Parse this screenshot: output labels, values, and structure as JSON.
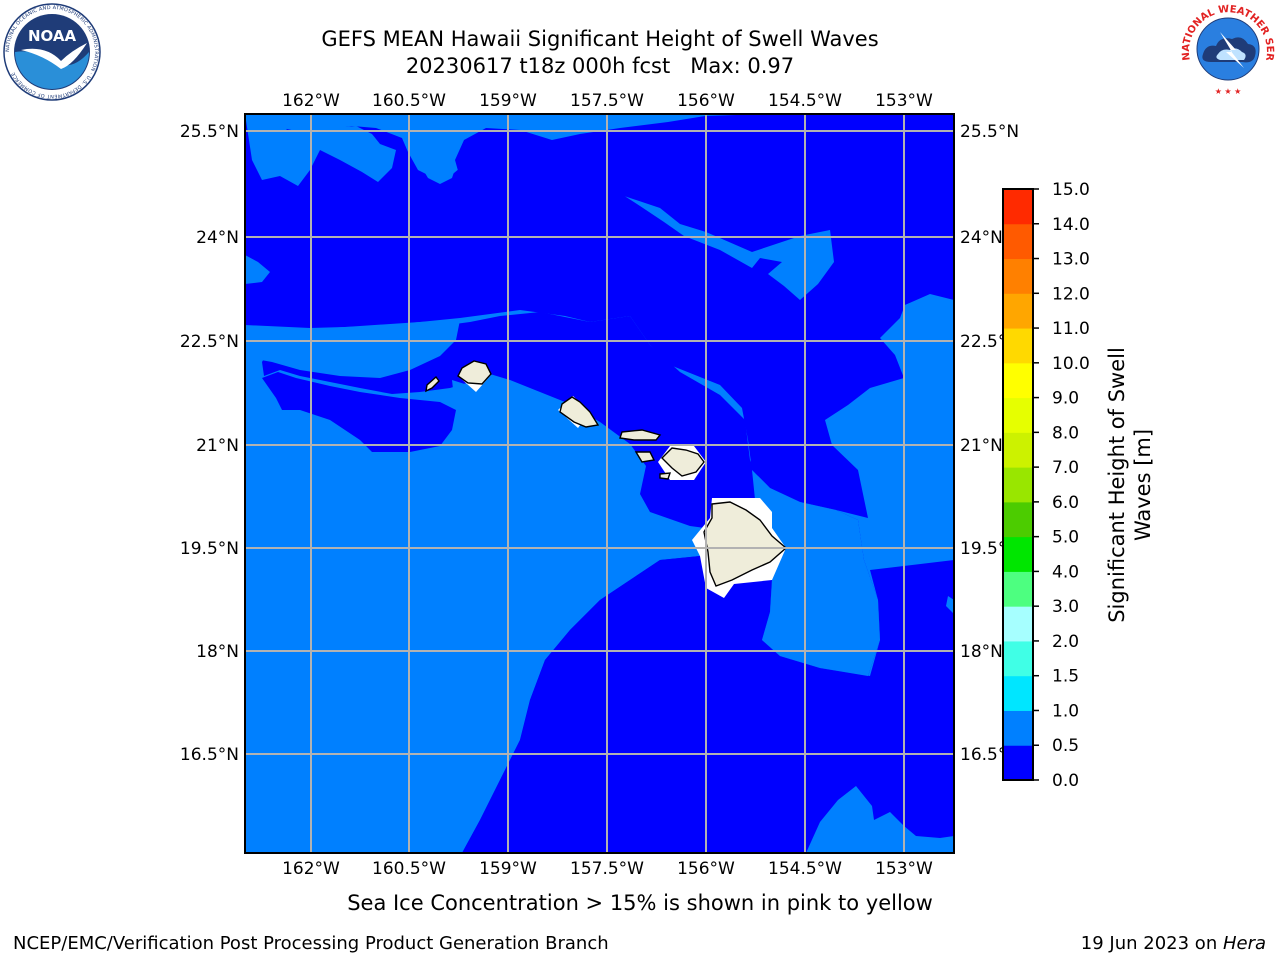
{
  "title": {
    "line1": "GEFS MEAN Hawaii Significant Height of Swell Waves",
    "line2": "20230617 t18z 000h fcst   Max: 0.97"
  },
  "map": {
    "lon_labels": [
      "162°W",
      "160.5°W",
      "159°W",
      "157.5°W",
      "156°W",
      "154.5°W",
      "153°W"
    ],
    "lat_labels": [
      "25.5°N",
      "24°N",
      "22.5°N",
      "21°N",
      "19.5°N",
      "18°N",
      "16.5°N"
    ],
    "colors": {
      "band_0_05": "#0000ff",
      "band_05_10": "#0080ff",
      "land": "#efedda",
      "grid": "#b2b2b2"
    }
  },
  "colorbar": {
    "label_line1": "Significant Height of Swell",
    "label_line2": "Waves [m]",
    "ticks": [
      "0.0",
      "0.5",
      "1.0",
      "1.5",
      "2.0",
      "3.0",
      "4.0",
      "5.0",
      "6.0",
      "7.0",
      "8.0",
      "9.0",
      "10.0",
      "11.0",
      "12.0",
      "13.0",
      "14.0",
      "15.0"
    ],
    "colors": [
      "#0000ff",
      "#0080ff",
      "#00e6ff",
      "#40ffe6",
      "#a6ffff",
      "#4dff80",
      "#00e600",
      "#4ccc00",
      "#99e600",
      "#ccf200",
      "#e6ff00",
      "#ffff00",
      "#ffd900",
      "#ffa600",
      "#ff8000",
      "#ff5a00",
      "#ff2a00",
      "#ff0000"
    ]
  },
  "caption": "Sea Ice Concentration > 15% is shown in pink to yellow",
  "footer": {
    "left": "NCEP/EMC/Verification Post Processing Product Generation Branch",
    "date": "19 Jun 2023 on ",
    "machine": "Hera"
  },
  "logos": {
    "noaa_text": "NOAA",
    "noaa_ring": "NATIONAL OCEANIC AND ATMOSPHERIC ADMINISTRATION · U.S. DEPARTMENT OF COMMERCE",
    "nws_ring": "NATIONAL WEATHER SERVICE"
  }
}
